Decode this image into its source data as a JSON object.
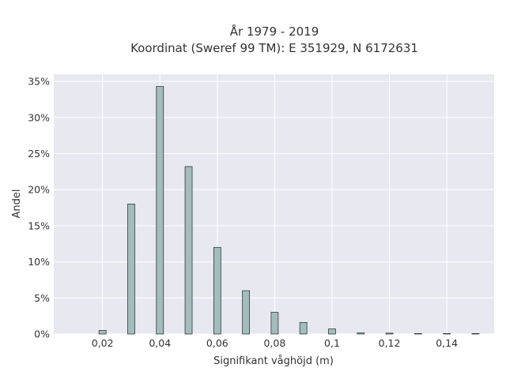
{
  "title_line1": "År 1979 - 2019",
  "title_line2": "Koordinat (Sweref 99 TM): E 351929, N 6172631",
  "chart_data": {
    "type": "bar",
    "title": "År 1979 - 2019\nKoordinat (Sweref 99 TM): E 351929, N 6172631",
    "xlabel": "Signifikant våghöjd (m)",
    "ylabel": "Andel",
    "x": [
      0.02,
      0.03,
      0.04,
      0.05,
      0.06,
      0.07,
      0.08,
      0.09,
      0.1,
      0.11,
      0.12,
      0.13,
      0.14,
      0.15
    ],
    "values": [
      0.5,
      18.0,
      34.3,
      23.2,
      12.0,
      6.0,
      3.0,
      1.6,
      0.7,
      0.15,
      0.12,
      0.05,
      0.05,
      0.05
    ],
    "value_unit": "%",
    "xlim": [
      0.003,
      0.1565
    ],
    "ylim": [
      0,
      36
    ],
    "x_ticks": [
      0.02,
      0.04,
      0.06,
      0.08,
      0.1,
      0.12,
      0.14
    ],
    "x_tick_labels": [
      "0,02",
      "0,04",
      "0,06",
      "0,08",
      "0,1",
      "0,12",
      "0,14"
    ],
    "y_ticks": [
      0,
      5,
      10,
      15,
      20,
      25,
      30,
      35
    ],
    "y_tick_labels": [
      "0%",
      "5%",
      "10%",
      "15%",
      "20%",
      "25%",
      "30%",
      "35%"
    ],
    "grid": true,
    "colors": {
      "bar_fill": "#a3bcbc",
      "bar_stroke": "#2f3b3b",
      "plot_background": "#e8e8f0",
      "grid": "#ffffff"
    }
  }
}
